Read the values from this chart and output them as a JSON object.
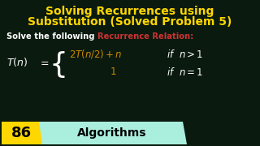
{
  "title_line1": "Solving Recurrences using",
  "title_line2": "Substitution (Solved Problem 5)",
  "title_color": "#FFD700",
  "bg_color": "#0a1a0e",
  "subtitle_white": "Solve the following ",
  "subtitle_red": "Recurrence Relation:",
  "formula_color": "#CC8800",
  "formula_white": "#FFFFFF",
  "badge_number": "86",
  "badge_label": "Algorithms",
  "badge_bg": "#FFD700",
  "badge_label_bg": "#AAEEDD"
}
